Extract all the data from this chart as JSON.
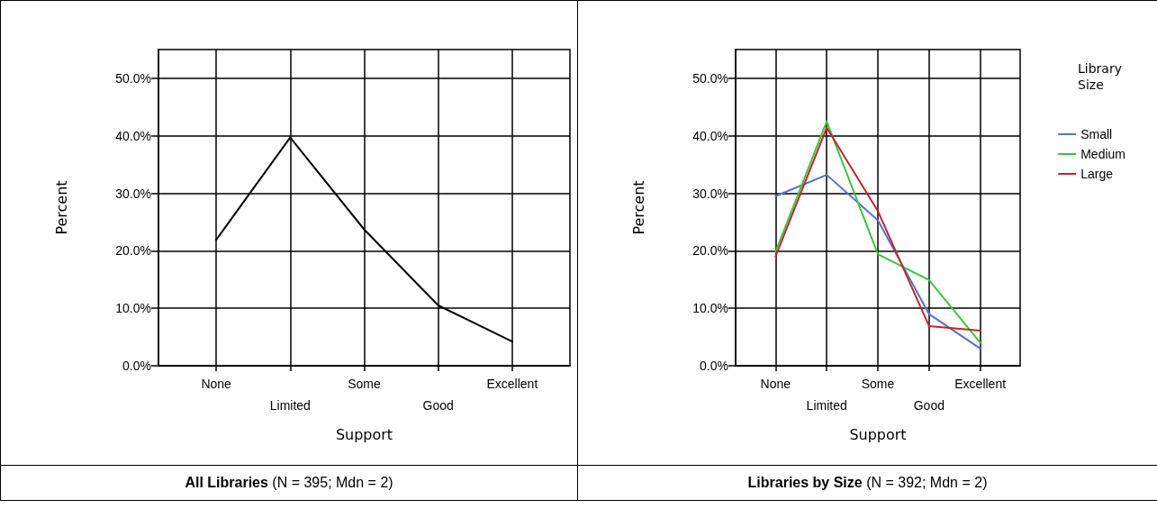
{
  "chart_data": [
    {
      "type": "line",
      "xlabel": "Support",
      "ylabel": "Percent",
      "categories": [
        "None",
        "Limited",
        "Some",
        "Good",
        "Excellent"
      ],
      "series": [
        {
          "color": "#000000",
          "values": [
            21.9,
            39.7,
            23.7,
            10.5,
            4.2
          ]
        }
      ],
      "ylim": [
        0,
        55
      ],
      "yticks": [
        {
          "value": 0,
          "label": "0.0%"
        },
        {
          "value": 10,
          "label": "10.0%"
        },
        {
          "value": 20,
          "label": "20.0%"
        },
        {
          "value": 30,
          "label": "30.0%"
        },
        {
          "value": 40,
          "label": "40.0%"
        },
        {
          "value": 50,
          "label": "50.0%"
        }
      ],
      "grid": true,
      "legend": false,
      "marker": "none",
      "annotations": [
        "All Libraries (N = 395; Mdn = 2)"
      ]
    },
    {
      "type": "line",
      "xlabel": "Support",
      "ylabel": "Percent",
      "legend_title": "Library Size",
      "categories": [
        "None",
        "Limited",
        "Some",
        "Good",
        "Excellent"
      ],
      "series": [
        {
          "name": "Small",
          "color": "#5470d0",
          "values": [
            29.5,
            33.2,
            25.3,
            9.0,
            3.0
          ]
        },
        {
          "name": "Medium",
          "color": "#3ec43e",
          "values": [
            19.8,
            42.5,
            19.4,
            14.9,
            4.0
          ]
        },
        {
          "name": "Large",
          "color": "#c0262a",
          "values": [
            19.0,
            41.4,
            26.9,
            6.9,
            6.1
          ]
        }
      ],
      "ylim": [
        0,
        55
      ],
      "yticks": [
        {
          "value": 0,
          "label": "0.0%"
        },
        {
          "value": 10,
          "label": "10.0%"
        },
        {
          "value": 20,
          "label": "20.0%"
        },
        {
          "value": 30,
          "label": "30.0%"
        },
        {
          "value": 40,
          "label": "40.0%"
        },
        {
          "value": 50,
          "label": "50.0%"
        }
      ],
      "grid": true,
      "legend": "right",
      "marker": "none",
      "annotations": [
        "Libraries by Size (N = 392; Mdn = 2)"
      ]
    }
  ]
}
